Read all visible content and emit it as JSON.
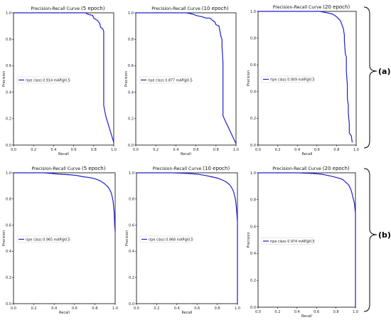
{
  "chart_data": [
    {
      "type": "line",
      "title_main": "Precision-Recall Curve",
      "title_suffix": "(5 epoch)",
      "xlabel": "Recall",
      "ylabel": "Precision",
      "xlim": [
        0,
        1
      ],
      "ylim": [
        0,
        1
      ],
      "x_ticks": [
        "0.0",
        "0.2",
        "0.4",
        "0.6",
        "0.8",
        "1.0"
      ],
      "y_ticks": [
        "0.0",
        "0.2",
        "0.4",
        "0.6",
        "0.8",
        "1.0"
      ],
      "legend_location": "center-left",
      "series": [
        {
          "name": "ripe class 0.914 mAP@0.5",
          "color": "#1f1fd0",
          "x": [
            0,
            0.72,
            0.74,
            0.79,
            0.8,
            0.84,
            0.86,
            0.87,
            0.89,
            0.9,
            0.9,
            0.9,
            0.92,
            1.0
          ],
          "y": [
            1,
            1,
            0.99,
            0.98,
            0.96,
            0.94,
            0.92,
            0.89,
            0.88,
            0.86,
            0.84,
            0.3,
            0.22,
            0.02
          ]
        }
      ]
    },
    {
      "type": "line",
      "title_main": "Precision-Recall Curve",
      "title_suffix": "(10 epoch)",
      "xlabel": "Recall",
      "ylabel": "Precision",
      "xlim": [
        0,
        1
      ],
      "ylim": [
        0,
        1
      ],
      "x_ticks": [
        "0.0",
        "0.2",
        "0.4",
        "0.6",
        "0.8",
        "1.0"
      ],
      "y_ticks": [
        "0.0",
        "0.2",
        "0.4",
        "0.6",
        "0.8",
        "1.0"
      ],
      "legend_location": "center-left",
      "series": [
        {
          "name": "ripe class 0.877 mAP@0.5",
          "color": "#1f1fd0",
          "x": [
            0,
            0.5,
            0.57,
            0.6,
            0.66,
            0.7,
            0.74,
            0.77,
            0.79,
            0.8,
            0.83,
            0.85,
            0.86,
            0.86,
            0.87,
            0.87,
            0.87,
            1.0
          ],
          "y": [
            1,
            1,
            0.99,
            0.98,
            0.97,
            0.96,
            0.96,
            0.94,
            0.93,
            0.91,
            0.9,
            0.82,
            0.8,
            0.75,
            0.62,
            0.5,
            0.22,
            0.01
          ]
        }
      ]
    },
    {
      "type": "line",
      "title_main": "Precision-Recall Curve",
      "title_suffix": "(20 epoch)",
      "xlabel": "Recall",
      "ylabel": "Precision",
      "xlim": [
        0,
        1
      ],
      "ylim": [
        0,
        1
      ],
      "x_ticks": [
        "0.0",
        "0.2",
        "0.4",
        "0.6",
        "0.8",
        "1.0"
      ],
      "y_ticks": [
        "0.0",
        "0.2",
        "0.4",
        "0.6",
        "0.8",
        "1.0"
      ],
      "legend_location": "center-left",
      "series": [
        {
          "name": "ripe class 0.909 mAP@0.5",
          "color": "#1f1fd0",
          "x": [
            0,
            0.63,
            0.7,
            0.76,
            0.8,
            0.84,
            0.86,
            0.87,
            0.88,
            0.88,
            0.89,
            0.9,
            0.9,
            0.91,
            0.91,
            0.92,
            0.92,
            0.93,
            0.93,
            0.95,
            0.96
          ],
          "y": [
            1,
            1,
            0.99,
            0.98,
            0.96,
            0.93,
            0.89,
            0.87,
            0.82,
            0.78,
            0.68,
            0.66,
            0.55,
            0.45,
            0.35,
            0.3,
            0.24,
            0.16,
            0.09,
            0.07,
            0.02
          ]
        }
      ]
    },
    {
      "type": "line",
      "title_main": "Precision-Recall Curve",
      "title_suffix": "(5 epoch)",
      "xlabel": "Recall",
      "ylabel": "Precision",
      "xlim": [
        0,
        1
      ],
      "ylim": [
        0,
        1
      ],
      "x_ticks": [
        "0.0",
        "0.2",
        "0.4",
        "0.6",
        "0.8",
        "1.0"
      ],
      "y_ticks": [
        "0.0",
        "0.2",
        "0.4",
        "0.6",
        "0.8",
        "1.0"
      ],
      "legend_location": "center-left",
      "series": [
        {
          "name": "ripe class 0.965 mAP@0.5",
          "color": "#1f1fd0",
          "x": [
            0,
            0.3,
            0.45,
            0.55,
            0.62,
            0.68,
            0.74,
            0.8,
            0.85,
            0.89,
            0.92,
            0.94,
            0.96,
            0.97,
            0.98,
            0.985,
            0.99,
            0.995,
            1.0
          ],
          "y": [
            1,
            1,
            0.99,
            0.985,
            0.98,
            0.97,
            0.965,
            0.955,
            0.94,
            0.92,
            0.9,
            0.88,
            0.85,
            0.82,
            0.78,
            0.74,
            0.7,
            0.6,
            0.55
          ]
        }
      ]
    },
    {
      "type": "line",
      "title_main": "Precision-Recall Curve",
      "title_suffix": "(10 epoch)",
      "xlabel": "Recall",
      "ylabel": "Precision",
      "xlim": [
        0,
        1
      ],
      "ylim": [
        0,
        1
      ],
      "x_ticks": [
        "0.0",
        "0.2",
        "0.4",
        "0.6",
        "0.8",
        "1.0"
      ],
      "y_ticks": [
        "0.0",
        "0.2",
        "0.4",
        "0.6",
        "0.8",
        "1.0"
      ],
      "legend_location": "center-left",
      "series": [
        {
          "name": "ripe class 0.968 mAP@0.5",
          "color": "#1f1fd0",
          "x": [
            0,
            0.35,
            0.5,
            0.6,
            0.68,
            0.74,
            0.8,
            0.85,
            0.89,
            0.92,
            0.94,
            0.96,
            0.97,
            0.98,
            0.985,
            0.99,
            0.995,
            1.0,
            1.0
          ],
          "y": [
            1,
            1,
            0.995,
            0.99,
            0.98,
            0.97,
            0.96,
            0.945,
            0.93,
            0.91,
            0.89,
            0.86,
            0.83,
            0.8,
            0.77,
            0.73,
            0.68,
            0.62,
            0.0
          ]
        }
      ]
    },
    {
      "type": "line",
      "title_main": "Precision-Recall Curve",
      "title_suffix": "(20 epoch)",
      "xlabel": "Recall",
      "ylabel": "Precision",
      "xlim": [
        0,
        1
      ],
      "ylim": [
        0,
        1
      ],
      "x_ticks": [
        "0.0",
        "0.2",
        "0.4",
        "0.6",
        "0.8",
        "1.0"
      ],
      "y_ticks": [
        "0.0",
        "0.2",
        "0.4",
        "0.6",
        "0.8",
        "1.0"
      ],
      "legend_location": "center-left",
      "series": [
        {
          "name": "ripe class 0.974 mAP@0.5",
          "color": "#1f1fd0",
          "x": [
            0,
            0.4,
            0.55,
            0.65,
            0.72,
            0.78,
            0.83,
            0.87,
            0.9,
            0.93,
            0.95,
            0.96,
            0.97,
            0.98,
            0.99,
            0.995,
            1.0,
            1.0
          ],
          "y": [
            1,
            1,
            0.995,
            0.99,
            0.98,
            0.97,
            0.96,
            0.95,
            0.93,
            0.91,
            0.88,
            0.86,
            0.83,
            0.8,
            0.77,
            0.73,
            0.7,
            0.0
          ]
        }
      ]
    }
  ],
  "group_labels": [
    "(a)",
    "(b)"
  ]
}
